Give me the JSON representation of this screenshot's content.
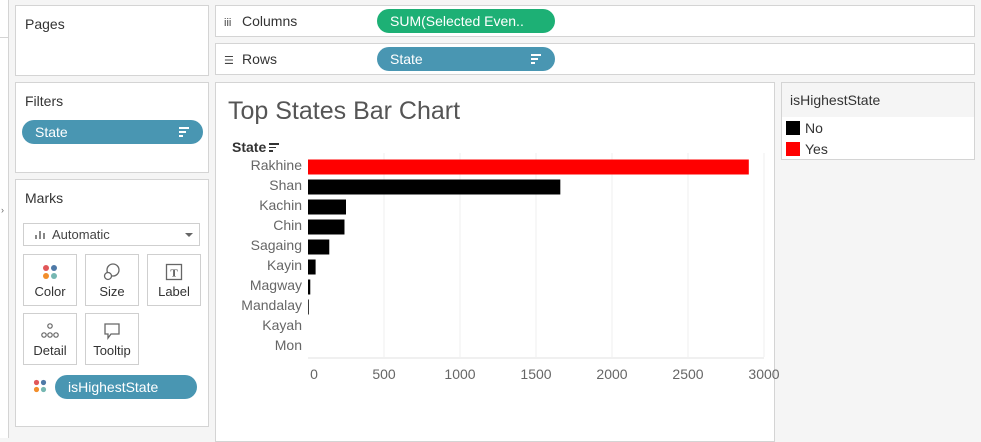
{
  "pages": {
    "title": "Pages"
  },
  "filters": {
    "title": "Filters",
    "pill": "State"
  },
  "marks": {
    "title": "Marks",
    "mark_type": "Automatic",
    "buttons": [
      {
        "label": "Color",
        "icon": "color-dots-icon"
      },
      {
        "label": "Size",
        "icon": "size-icon"
      },
      {
        "label": "Label",
        "icon": "label-icon"
      },
      {
        "label": "Detail",
        "icon": "detail-icon"
      },
      {
        "label": "Tooltip",
        "icon": "tooltip-icon"
      }
    ],
    "color_field": "isHighestState"
  },
  "columns_shelf": {
    "label": "Columns",
    "pill": "SUM(Selected Even.."
  },
  "rows_shelf": {
    "label": "Rows",
    "pill": "State"
  },
  "legend": {
    "title": "isHighestState",
    "items": [
      {
        "label": "No",
        "color": "#000000"
      },
      {
        "label": "Yes",
        "color": "#ff0000"
      }
    ]
  },
  "colors": {
    "pill_blue": "#4996b2",
    "pill_green": "#1db075",
    "highlight": "#ff0000",
    "default_bar": "#000000"
  },
  "chart_data": {
    "type": "bar",
    "orientation": "horizontal",
    "title": "Top States Bar Chart",
    "ylabel": "State",
    "xlabel": "",
    "categories": [
      "Rakhine",
      "Shan",
      "Kachin",
      "Chin",
      "Sagaing",
      "Kayin",
      "Magway",
      "Mandalay",
      "Kayah",
      "Mon"
    ],
    "values": [
      2900,
      1660,
      250,
      240,
      140,
      50,
      15,
      5,
      0,
      0
    ],
    "highest": [
      true,
      false,
      false,
      false,
      false,
      false,
      false,
      false,
      false,
      false
    ],
    "xlim": [
      0,
      3000
    ],
    "xticks": [
      0,
      500,
      1000,
      1500,
      2000,
      2500,
      3000
    ],
    "grid": true
  }
}
